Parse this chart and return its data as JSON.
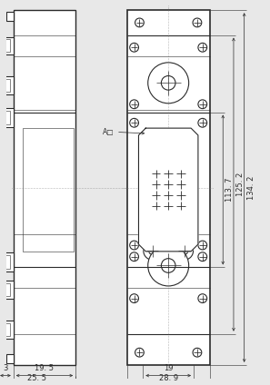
{
  "bg_color": "#e8e8e8",
  "line_color": "#2a2a2a",
  "dim_color": "#2a2a2a",
  "dims_bottom_left": {
    "d1": "3",
    "d2": "19. 5",
    "d3": "25. 5"
  },
  "dims_bottom_right": {
    "d4": "19",
    "d5": "28. 9"
  },
  "dims_right": {
    "d6": "113. 7",
    "d7": "125. 2",
    "d8": "134. 2"
  },
  "label_A": "A□"
}
